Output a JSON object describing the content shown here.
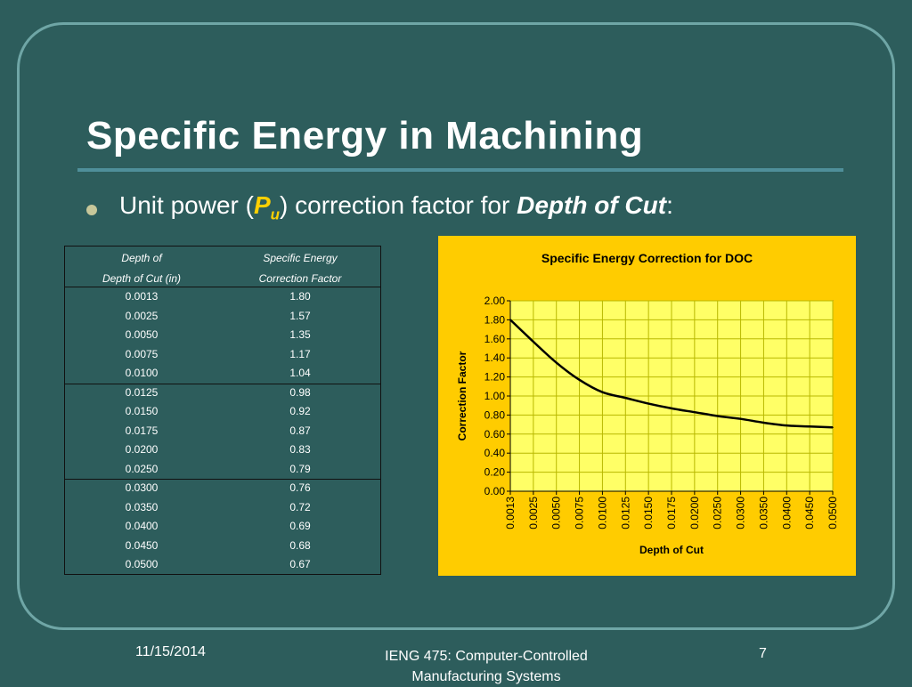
{
  "slide": {
    "title": "Specific Energy in Machining",
    "bullet": {
      "prefix": "Unit power (",
      "symbol": "P",
      "subscript": "u",
      "middle": ") correction factor for ",
      "emphasis": "Depth of Cut",
      "suffix": ":"
    },
    "footer": {
      "date": "11/15/2014",
      "course": "IENG 475: Computer-Controlled Manufacturing Systems",
      "page": "7"
    }
  },
  "table": {
    "header": {
      "col1_line1": "Depth of",
      "col1_line2": "Depth of Cut (in)",
      "col2_line1": "Specific Energy",
      "col2_line2": "Correction Factor"
    },
    "rows": [
      [
        "0.0013",
        "1.80"
      ],
      [
        "0.0025",
        "1.57"
      ],
      [
        "0.0050",
        "1.35"
      ],
      [
        "0.0075",
        "1.17"
      ],
      [
        "0.0100",
        "1.04"
      ],
      [
        "0.0125",
        "0.98"
      ],
      [
        "0.0150",
        "0.92"
      ],
      [
        "0.0175",
        "0.87"
      ],
      [
        "0.0200",
        "0.83"
      ],
      [
        "0.0250",
        "0.79"
      ],
      [
        "0.0300",
        "0.76"
      ],
      [
        "0.0350",
        "0.72"
      ],
      [
        "0.0400",
        "0.69"
      ],
      [
        "0.0450",
        "0.68"
      ],
      [
        "0.0500",
        "0.67"
      ]
    ]
  },
  "chart_data": {
    "type": "line",
    "title": "Specific Energy Correction for DOC",
    "xlabel": "Depth of Cut",
    "ylabel": "Correction Factor",
    "categories": [
      "0.0013",
      "0.0025",
      "0.0050",
      "0.0075",
      "0.0100",
      "0.0125",
      "0.0150",
      "0.0175",
      "0.0200",
      "0.0250",
      "0.0300",
      "0.0350",
      "0.0400",
      "0.0450",
      "0.0500"
    ],
    "series": [
      {
        "values": [
          1.8,
          1.57,
          1.35,
          1.17,
          1.04,
          0.98,
          0.92,
          0.87,
          0.83,
          0.79,
          0.76,
          0.72,
          0.69,
          0.68,
          0.67
        ]
      }
    ],
    "yticks": [
      "0.00",
      "0.20",
      "0.40",
      "0.60",
      "0.80",
      "1.00",
      "1.20",
      "1.40",
      "1.60",
      "1.80",
      "2.00"
    ],
    "ylim": [
      0,
      2
    ],
    "grid": true,
    "colors": {
      "background": "#ffcc00",
      "plot_area": "#ffff66",
      "line": "#000000",
      "grid": "#b8b800"
    }
  }
}
